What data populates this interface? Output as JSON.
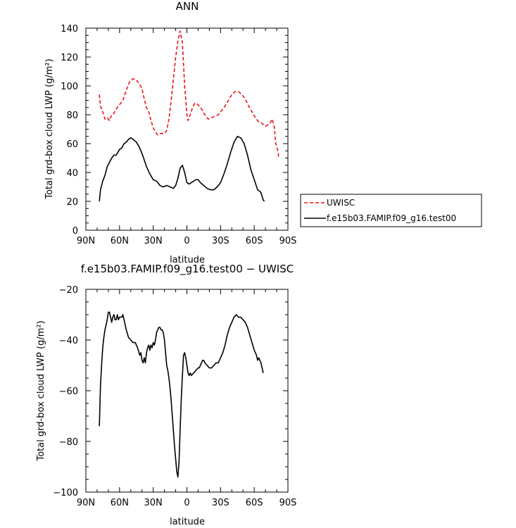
{
  "chart_data": [
    {
      "type": "line",
      "title": "ANN",
      "xlabel": "latitude",
      "ylabel": "Total grd-box cloud LWP (g/m²)",
      "xlim": [
        90,
        -90
      ],
      "ylim": [
        0,
        140
      ],
      "xticks": [
        90,
        60,
        30,
        0,
        -30,
        -60,
        -90
      ],
      "xtick_labels": [
        "90N",
        "60N",
        "30N",
        "0",
        "30S",
        "60S",
        "90S"
      ],
      "yticks": [
        0,
        20,
        40,
        60,
        80,
        100,
        120,
        140
      ],
      "ytick_labels": [
        "0",
        "20",
        "40",
        "60",
        "80",
        "100",
        "120",
        "140"
      ],
      "legend_position": "right-outside",
      "series": [
        {
          "name": "UWISC",
          "color": "#e8151b",
          "dash": "dashed",
          "points": [
            [
              78,
              94
            ],
            [
              77,
              86
            ],
            [
              75,
              82
            ],
            [
              73,
              77
            ],
            [
              71,
              78
            ],
            [
              69,
              76
            ],
            [
              67,
              80
            ],
            [
              65,
              81
            ],
            [
              63,
              84
            ],
            [
              60,
              87
            ],
            [
              57,
              90
            ],
            [
              54,
              97
            ],
            [
              51,
              103
            ],
            [
              48,
              105
            ],
            [
              45,
              104
            ],
            [
              42,
              101
            ],
            [
              40,
              98
            ],
            [
              38,
              91
            ],
            [
              36,
              85
            ],
            [
              34,
              82
            ],
            [
              32,
              76
            ],
            [
              30,
              71
            ],
            [
              28,
              68
            ],
            [
              26,
              66
            ],
            [
              24,
              67
            ],
            [
              22,
              67
            ],
            [
              20,
              67
            ],
            [
              18,
              69
            ],
            [
              16,
              77
            ],
            [
              14,
              90
            ],
            [
              12,
              105
            ],
            [
              10,
              120
            ],
            [
              8,
              131
            ],
            [
              6,
              138
            ],
            [
              4,
              130
            ],
            [
              2,
              100
            ],
            [
              0,
              80
            ],
            [
              -1,
              76
            ],
            [
              -3,
              80
            ],
            [
              -5,
              85
            ],
            [
              -7,
              88
            ],
            [
              -10,
              87
            ],
            [
              -13,
              84
            ],
            [
              -16,
              80
            ],
            [
              -19,
              77
            ],
            [
              -22,
              78
            ],
            [
              -25,
              79
            ],
            [
              -28,
              80
            ],
            [
              -31,
              83
            ],
            [
              -34,
              86
            ],
            [
              -37,
              90
            ],
            [
              -40,
              94
            ],
            [
              -43,
              96
            ],
            [
              -46,
              96
            ],
            [
              -49,
              94
            ],
            [
              -52,
              91
            ],
            [
              -55,
              86
            ],
            [
              -58,
              82
            ],
            [
              -61,
              78
            ],
            [
              -64,
              75
            ],
            [
              -67,
              74
            ],
            [
              -70,
              72
            ],
            [
              -72,
              73
            ],
            [
              -74,
              74
            ],
            [
              -76,
              77
            ],
            [
              -78,
              71
            ],
            [
              -79,
              61
            ],
            [
              -81,
              55
            ],
            [
              -82,
              50
            ]
          ]
        },
        {
          "name": "f.e15b03.FAMIP.f09_g16.test00",
          "color": "#000000",
          "dash": "solid",
          "points": [
            [
              78,
              20
            ],
            [
              77,
              28
            ],
            [
              75,
              34
            ],
            [
              73,
              38
            ],
            [
              71,
              44
            ],
            [
              69,
              47
            ],
            [
              67,
              50
            ],
            [
              65,
              52
            ],
            [
              63,
              52
            ],
            [
              60,
              56
            ],
            [
              58,
              57
            ],
            [
              56,
              60
            ],
            [
              54,
              61
            ],
            [
              52,
              63
            ],
            [
              50,
              64
            ],
            [
              48,
              63
            ],
            [
              45,
              61
            ],
            [
              42,
              57
            ],
            [
              39,
              51
            ],
            [
              36,
              44
            ],
            [
              33,
              39
            ],
            [
              30,
              35
            ],
            [
              27,
              34
            ],
            [
              24,
              31
            ],
            [
              21,
              30
            ],
            [
              18,
              31
            ],
            [
              15,
              30
            ],
            [
              12,
              29
            ],
            [
              10,
              31
            ],
            [
              8,
              36
            ],
            [
              6,
              43
            ],
            [
              4,
              45
            ],
            [
              2,
              40
            ],
            [
              0,
              33
            ],
            [
              -2,
              32
            ],
            [
              -4,
              33
            ],
            [
              -6,
              34
            ],
            [
              -8,
              35
            ],
            [
              -10,
              35
            ],
            [
              -12,
              33
            ],
            [
              -15,
              31
            ],
            [
              -18,
              29
            ],
            [
              -21,
              28
            ],
            [
              -24,
              28
            ],
            [
              -27,
              30
            ],
            [
              -30,
              33
            ],
            [
              -33,
              39
            ],
            [
              -36,
              46
            ],
            [
              -39,
              54
            ],
            [
              -42,
              61
            ],
            [
              -45,
              65
            ],
            [
              -48,
              64
            ],
            [
              -51,
              60
            ],
            [
              -54,
              52
            ],
            [
              -57,
              42
            ],
            [
              -60,
              35
            ],
            [
              -63,
              28
            ],
            [
              -65,
              27
            ],
            [
              -66,
              26
            ],
            [
              -68,
              21
            ],
            [
              -69,
              20
            ]
          ]
        }
      ]
    },
    {
      "type": "line",
      "title": "f.e15b03.FAMIP.f09_g16.test00 − UWISC",
      "xlabel": "latitude",
      "ylabel": "Total grd-box cloud LWP (g/m²)",
      "xlim": [
        90,
        -90
      ],
      "ylim": [
        -100,
        -20
      ],
      "xticks": [
        90,
        60,
        30,
        0,
        -30,
        -60,
        -90
      ],
      "xtick_labels": [
        "90N",
        "60N",
        "30N",
        "0",
        "30S",
        "60S",
        "90S"
      ],
      "yticks": [
        -100,
        -80,
        -60,
        -40,
        -20
      ],
      "ytick_labels": [
        "−100",
        "−80",
        "−60",
        "−40",
        "−20"
      ],
      "series": [
        {
          "color": "#000000",
          "dash": "solid",
          "points": [
            [
              78,
              -74
            ],
            [
              77.5,
              -66
            ],
            [
              77,
              -58
            ],
            [
              76,
              -50
            ],
            [
              75,
              -43
            ],
            [
              74,
              -39
            ],
            [
              73,
              -36
            ],
            [
              72,
              -34
            ],
            [
              71,
              -32
            ],
            [
              70,
              -29
            ],
            [
              69,
              -29
            ],
            [
              68,
              -31
            ],
            [
              67,
              -33
            ],
            [
              66,
              -31
            ],
            [
              65,
              -30
            ],
            [
              64,
              -32
            ],
            [
              63,
              -32
            ],
            [
              62,
              -30
            ],
            [
              61,
              -32
            ],
            [
              60,
              -31
            ],
            [
              58,
              -31
            ],
            [
              57,
              -30
            ],
            [
              56,
              -32
            ],
            [
              55,
              -34
            ],
            [
              54,
              -36
            ],
            [
              52,
              -39
            ],
            [
              50,
              -40
            ],
            [
              48,
              -41
            ],
            [
              46,
              -41
            ],
            [
              44,
              -43
            ],
            [
              42,
              -46
            ],
            [
              41,
              -45
            ],
            [
              40,
              -48
            ],
            [
              39,
              -49
            ],
            [
              38,
              -47
            ],
            [
              37,
              -49
            ],
            [
              36,
              -45
            ],
            [
              35,
              -43
            ],
            [
              34,
              -42
            ],
            [
              33,
              -44
            ],
            [
              32,
              -42
            ],
            [
              31,
              -43
            ],
            [
              30,
              -41
            ],
            [
              29,
              -42
            ],
            [
              28,
              -40
            ],
            [
              27,
              -37
            ],
            [
              26,
              -36
            ],
            [
              25,
              -35
            ],
            [
              24,
              -35
            ],
            [
              23,
              -36
            ],
            [
              22,
              -36
            ],
            [
              21,
              -37
            ],
            [
              20,
              -40
            ],
            [
              19,
              -45
            ],
            [
              18,
              -50
            ],
            [
              17,
              -52
            ],
            [
              16,
              -55
            ],
            [
              15,
              -59
            ],
            [
              14,
              -64
            ],
            [
              13,
              -70
            ],
            [
              12,
              -76
            ],
            [
              11,
              -82
            ],
            [
              10,
              -87
            ],
            [
              9,
              -92
            ],
            [
              8,
              -94
            ],
            [
              7,
              -88
            ],
            [
              6,
              -75
            ],
            [
              5,
              -63
            ],
            [
              4,
              -54
            ],
            [
              3,
              -46
            ],
            [
              2,
              -45
            ],
            [
              1,
              -47
            ],
            [
              0,
              -50
            ],
            [
              -1,
              -53
            ],
            [
              -2,
              -54
            ],
            [
              -3,
              -53
            ],
            [
              -4,
              -54
            ],
            [
              -6,
              -53
            ],
            [
              -8,
              -52
            ],
            [
              -10,
              -51
            ],
            [
              -11,
              -51
            ],
            [
              -12,
              -50
            ],
            [
              -14,
              -48
            ],
            [
              -15,
              -48
            ],
            [
              -16,
              -49
            ],
            [
              -18,
              -50
            ],
            [
              -20,
              -51
            ],
            [
              -22,
              -51
            ],
            [
              -24,
              -50
            ],
            [
              -26,
              -49
            ],
            [
              -28,
              -49
            ],
            [
              -30,
              -47
            ],
            [
              -32,
              -45
            ],
            [
              -34,
              -42
            ],
            [
              -36,
              -38
            ],
            [
              -38,
              -35
            ],
            [
              -40,
              -33
            ],
            [
              -42,
              -31
            ],
            [
              -44,
              -30
            ],
            [
              -46,
              -31
            ],
            [
              -48,
              -31
            ],
            [
              -50,
              -32
            ],
            [
              -52,
              -33
            ],
            [
              -54,
              -35
            ],
            [
              -56,
              -38
            ],
            [
              -58,
              -41
            ],
            [
              -60,
              -44
            ],
            [
              -62,
              -46
            ],
            [
              -63,
              -48
            ],
            [
              -64,
              -47
            ],
            [
              -65,
              -48
            ],
            [
              -66,
              -49
            ],
            [
              -67,
              -51
            ],
            [
              -68,
              -53
            ]
          ]
        }
      ]
    }
  ]
}
